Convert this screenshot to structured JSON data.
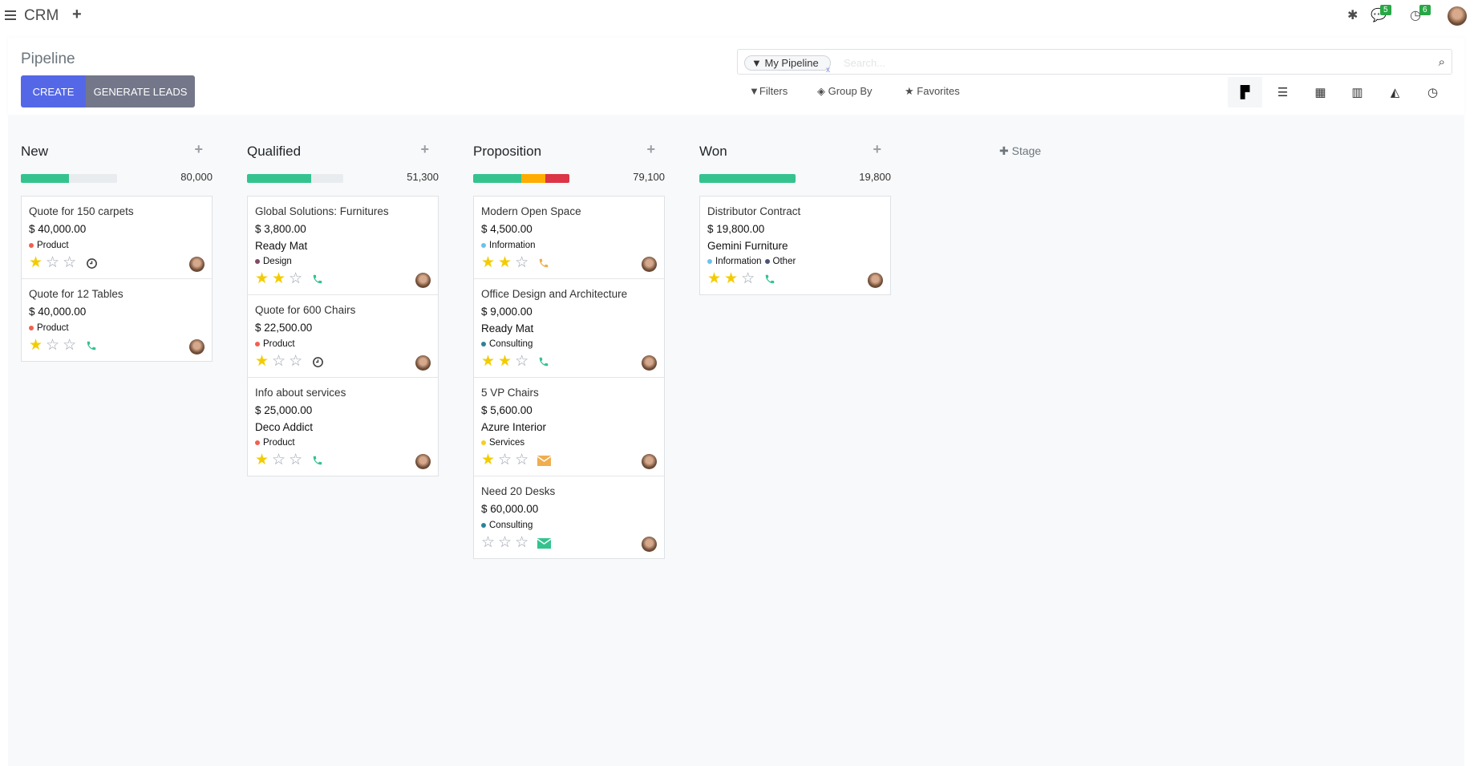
{
  "topbar": {
    "app_name": "CRM",
    "messages_count": "5",
    "activities_count": "6"
  },
  "control_panel": {
    "title": "Pipeline",
    "create_label": "CREATE",
    "generate_leads_label": "GENERATE LEADS",
    "search": {
      "facet": "My Pipeline",
      "placeholder": "Search..."
    },
    "filters_label": "Filters",
    "group_by_label": "Group By",
    "favorites_label": "Favorites",
    "views": [
      "kanban",
      "list",
      "calendar",
      "pivot",
      "graph",
      "activity"
    ],
    "active_view": "kanban"
  },
  "colors": {
    "green": "#34c38f",
    "orange": "#ffac00",
    "red": "#dc3545",
    "primary": "#5468e7",
    "secondary": "#737789"
  },
  "add_stage_label": "Stage",
  "columns": [
    {
      "title": "New",
      "total": "80,000",
      "progress": [
        {
          "color": "#34c38f",
          "pct": 50
        }
      ],
      "cards": [
        {
          "name": "Quote for 150 carpets",
          "amount": "$ 40,000.00",
          "company": "",
          "tags": [
            {
              "label": "Product",
              "color": "#f06050"
            }
          ],
          "stars": 1,
          "activity": "clock",
          "activity_color": "#444444"
        },
        {
          "name": "Quote for 12 Tables",
          "amount": "$ 40,000.00",
          "company": "",
          "tags": [
            {
              "label": "Product",
              "color": "#f06050"
            }
          ],
          "stars": 1,
          "activity": "phone",
          "activity_color": "#34c38f"
        }
      ]
    },
    {
      "title": "Qualified",
      "total": "51,300",
      "progress": [
        {
          "color": "#34c38f",
          "pct": 67
        }
      ],
      "cards": [
        {
          "name": "Global Solutions: Furnitures",
          "amount": "$ 3,800.00",
          "company": "Ready Mat",
          "tags": [
            {
              "label": "Design",
              "color": "#814968"
            }
          ],
          "stars": 2,
          "activity": "phone",
          "activity_color": "#34c38f"
        },
        {
          "name": "Quote for 600 Chairs",
          "amount": "$ 22,500.00",
          "company": "",
          "tags": [
            {
              "label": "Product",
              "color": "#f06050"
            }
          ],
          "stars": 1,
          "activity": "clock",
          "activity_color": "#444444"
        },
        {
          "name": "Info about services",
          "amount": "$ 25,000.00",
          "company": "Deco Addict",
          "tags": [
            {
              "label": "Product",
              "color": "#f06050"
            }
          ],
          "stars": 1,
          "activity": "phone",
          "activity_color": "#34c38f"
        }
      ]
    },
    {
      "title": "Proposition",
      "total": "79,100",
      "progress": [
        {
          "color": "#34c38f",
          "pct": 50
        },
        {
          "color": "#ffac00",
          "pct": 25
        },
        {
          "color": "#dc3545",
          "pct": 25
        }
      ],
      "cards": [
        {
          "name": "Modern Open Space",
          "amount": "$ 4,500.00",
          "company": "",
          "tags": [
            {
              "label": "Information",
              "color": "#6cc1ed"
            }
          ],
          "stars": 2,
          "activity": "phone",
          "activity_color": "#f0ad4e"
        },
        {
          "name": "Office Design and Architecture",
          "amount": "$ 9,000.00",
          "company": "Ready Mat",
          "tags": [
            {
              "label": "Consulting",
              "color": "#2c8397"
            }
          ],
          "stars": 2,
          "activity": "phone",
          "activity_color": "#34c38f"
        },
        {
          "name": "5 VP Chairs",
          "amount": "$ 5,600.00",
          "company": "Azure Interior",
          "tags": [
            {
              "label": "Services",
              "color": "#f7cd1f"
            }
          ],
          "stars": 1,
          "activity": "envelope",
          "activity_color": "#f0ad4e"
        },
        {
          "name": "Need 20 Desks",
          "amount": "$ 60,000.00",
          "company": "",
          "tags": [
            {
              "label": "Consulting",
              "color": "#2c8397"
            }
          ],
          "stars": 0,
          "activity": "envelope",
          "activity_color": "#34c38f"
        }
      ]
    },
    {
      "title": "Won",
      "total": "19,800",
      "progress": [
        {
          "color": "#34c38f",
          "pct": 100
        }
      ],
      "cards": [
        {
          "name": "Distributor Contract",
          "amount": "$ 19,800.00",
          "company": "Gemini Furniture",
          "tags": [
            {
              "label": "Information",
              "color": "#6cc1ed"
            },
            {
              "label": "Other",
              "color": "#475577"
            }
          ],
          "stars": 2,
          "activity": "phone",
          "activity_color": "#34c38f"
        }
      ]
    }
  ]
}
